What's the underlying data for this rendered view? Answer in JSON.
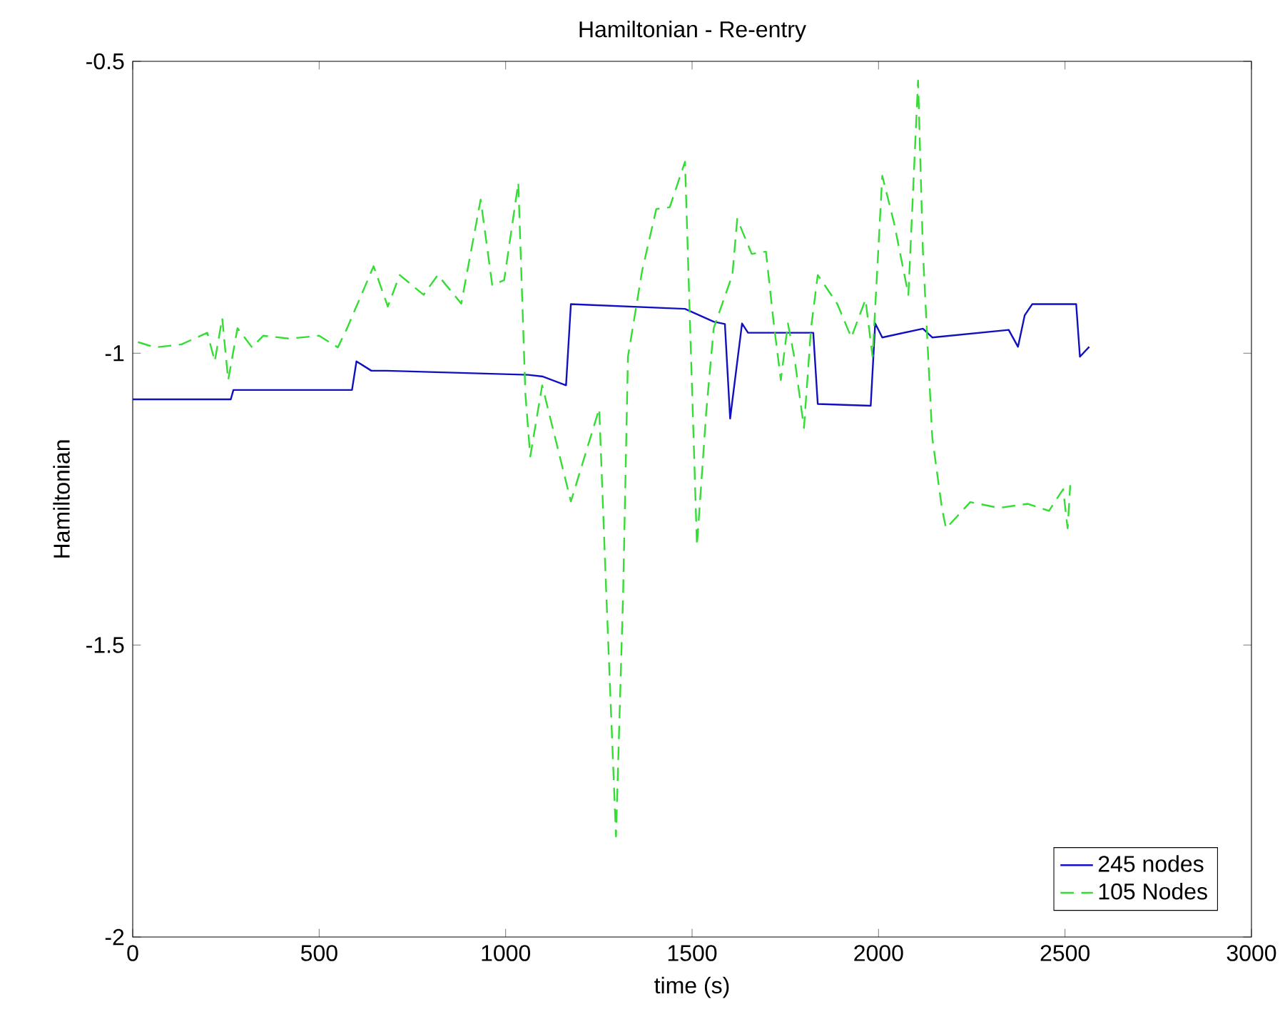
{
  "chart_data": {
    "type": "line",
    "title": "Hamiltonian - Re-entry",
    "xlabel": "time (s)",
    "ylabel": "Hamiltonian",
    "xlim": [
      0,
      3000
    ],
    "xticks": [
      0,
      500,
      1000,
      1500,
      2000,
      2500,
      3000
    ],
    "ylim": [
      -2,
      -0.5
    ],
    "yticks": [
      -2,
      -1.5,
      -1,
      -0.5
    ],
    "legend": "bottom right",
    "grid": false,
    "series": [
      {
        "name": "245 nodes",
        "color": "#1010c0",
        "line_style": "solid",
        "x": [
          0,
          263,
          270,
          588,
          600,
          640,
          680,
          1060,
          1100,
          1162,
          1175,
          1481,
          1558,
          1588,
          1602,
          1634,
          1650,
          1825,
          1837,
          1979,
          1991,
          2010,
          2119,
          2144,
          2349,
          2374,
          2392,
          2412,
          2530,
          2540,
          2565
        ],
        "values": [
          -1.079,
          -1.079,
          -1.063,
          -1.063,
          -1.014,
          -1.03,
          -1.03,
          -1.037,
          -1.04,
          -1.055,
          -0.916,
          -0.924,
          -0.946,
          -0.95,
          -1.112,
          -0.949,
          -0.965,
          -0.965,
          -1.087,
          -1.09,
          -0.949,
          -0.973,
          -0.958,
          -0.973,
          -0.96,
          -0.989,
          -0.935,
          -0.916,
          -0.916,
          -1.006,
          -0.989
        ]
      },
      {
        "name": "105 Nodes",
        "color": "#33dd33",
        "line_style": "dashed",
        "x": [
          14,
          60,
          130,
          200,
          220,
          240,
          256,
          281,
          320,
          350,
          420,
          500,
          550,
          575,
          646,
          684,
          716,
          780,
          818,
          881,
          933,
          964,
          996,
          1034,
          1053,
          1066,
          1098,
          1175,
          1251,
          1270,
          1296,
          1315,
          1328,
          1366,
          1404,
          1440,
          1481,
          1513,
          1538,
          1558,
          1608,
          1621,
          1660,
          1698,
          1719,
          1738,
          1757,
          1775,
          1800,
          1819,
          1837,
          1889,
          1927,
          1965,
          1984,
          2010,
          2042,
          2080,
          2106,
          2119,
          2144,
          2170,
          2181,
          2246,
          2323,
          2400,
          2457,
          2495,
          2507,
          2514
        ],
        "values": [
          -0.981,
          -0.99,
          -0.985,
          -0.965,
          -1.014,
          -0.94,
          -1.046,
          -0.957,
          -0.99,
          -0.97,
          -0.975,
          -0.97,
          -0.99,
          -0.957,
          -0.851,
          -0.92,
          -0.866,
          -0.9,
          -0.866,
          -0.915,
          -0.737,
          -0.883,
          -0.875,
          -0.708,
          -1.07,
          -1.177,
          -1.055,
          -1.254,
          -1.095,
          -1.413,
          -1.828,
          -1.413,
          -1.006,
          -0.859,
          -0.753,
          -0.75,
          -0.672,
          -1.33,
          -1.1,
          -0.957,
          -0.866,
          -0.77,
          -0.83,
          -0.826,
          -0.949,
          -1.046,
          -0.949,
          -1.01,
          -1.128,
          -0.957,
          -0.866,
          -0.915,
          -0.973,
          -0.908,
          -1.006,
          -0.696,
          -0.778,
          -0.9,
          -0.533,
          -0.826,
          -1.144,
          -1.266,
          -1.3,
          -1.255,
          -1.265,
          -1.258,
          -1.27,
          -1.233,
          -1.3,
          -1.226
        ]
      }
    ]
  }
}
